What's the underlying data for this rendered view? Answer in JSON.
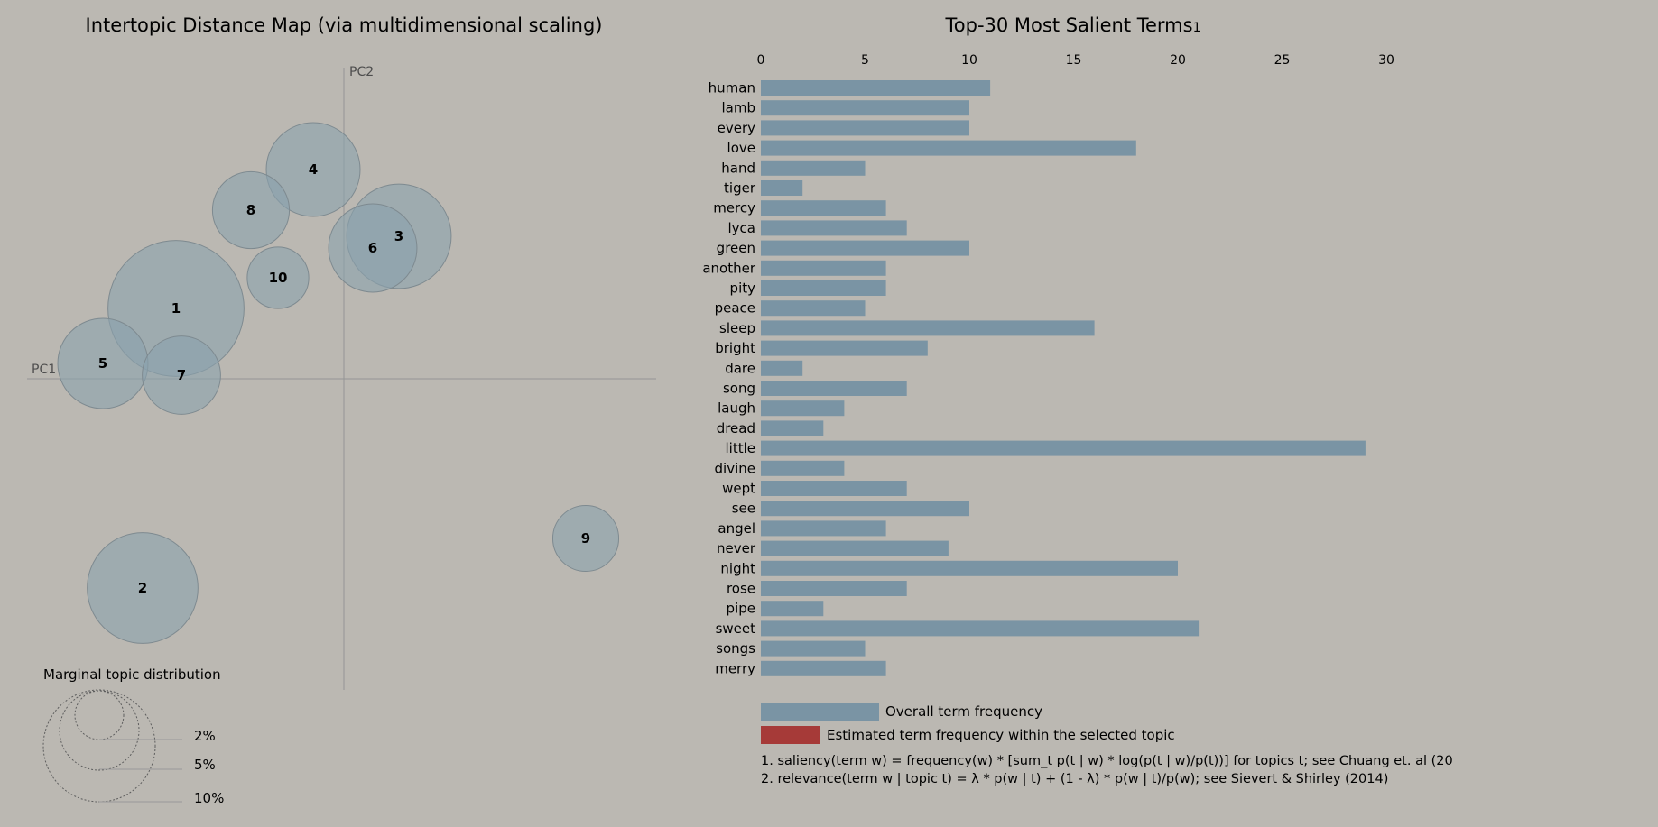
{
  "left_title": "Intertopic Distance Map (via multidimensional scaling)",
  "right_title": "Top-30 Most Salient Terms",
  "right_title_sup": "1",
  "pc1_label": "PC1",
  "pc2_label": "PC2",
  "marginal": {
    "title": "Marginal topic distribution",
    "labels": [
      "2%",
      "5%",
      "10%"
    ]
  },
  "legend": {
    "overall": "Overall term frequency",
    "within": "Estimated term frequency within the selected topic"
  },
  "notes": [
    "1. saliency(term w) = frequency(w) * [sum_t p(t | w) * log(p(t | w)/p(t))] for topics t; see Chuang et. al (20",
    "2. relevance(term w | topic t) = λ * p(w | t) + (1 - λ) * p(w | t)/p(w); see Sievert & Shirley (2014)"
  ],
  "colors": {
    "background": "#bbb8b2",
    "bar": "#7a94a4",
    "bubble": "#8aa1ae",
    "selected": "#a63a38"
  },
  "chart_data": [
    {
      "type": "scatter",
      "title": "Intertopic Distance Map (via multidimensional scaling)",
      "xlabel": "PC1",
      "ylabel": "PC2",
      "topics": [
        {
          "label": "1",
          "pc1": -0.186,
          "pc2": 0.078,
          "marginal_pct": 16.6
        },
        {
          "label": "2",
          "pc1": -0.223,
          "pc2": -0.232,
          "marginal_pct": 11.0
        },
        {
          "label": "3",
          "pc1": 0.061,
          "pc2": 0.158,
          "marginal_pct": 9.8
        },
        {
          "label": "4",
          "pc1": -0.034,
          "pc2": 0.232,
          "marginal_pct": 7.9
        },
        {
          "label": "5",
          "pc1": -0.267,
          "pc2": 0.017,
          "marginal_pct": 7.3
        },
        {
          "label": "6",
          "pc1": 0.032,
          "pc2": 0.145,
          "marginal_pct": 7.0
        },
        {
          "label": "7",
          "pc1": -0.18,
          "pc2": 0.004,
          "marginal_pct": 5.5
        },
        {
          "label": "8",
          "pc1": -0.103,
          "pc2": 0.187,
          "marginal_pct": 5.3
        },
        {
          "label": "9",
          "pc1": 0.268,
          "pc2": -0.177,
          "marginal_pct": 3.9
        },
        {
          "label": "10",
          "pc1": -0.073,
          "pc2": 0.112,
          "marginal_pct": 3.4
        }
      ]
    },
    {
      "type": "bar",
      "orientation": "horizontal",
      "title": "Top-30 Most Salient Terms",
      "xlim": [
        0,
        30
      ],
      "xticks": [
        0,
        5,
        10,
        15,
        20,
        25,
        30
      ],
      "categories": [
        "human",
        "lamb",
        "every",
        "love",
        "hand",
        "tiger",
        "mercy",
        "lyca",
        "green",
        "another",
        "pity",
        "peace",
        "sleep",
        "bright",
        "dare",
        "song",
        "laugh",
        "dread",
        "little",
        "divine",
        "wept",
        "see",
        "angel",
        "never",
        "night",
        "rose",
        "pipe",
        "sweet",
        "songs",
        "merry"
      ],
      "values": [
        11,
        10,
        10,
        18,
        5,
        2,
        6,
        7,
        10,
        6,
        6,
        5,
        16,
        8,
        2,
        7,
        4,
        3,
        29,
        4,
        7,
        10,
        6,
        9,
        20,
        7,
        3,
        21,
        5,
        6
      ]
    }
  ]
}
